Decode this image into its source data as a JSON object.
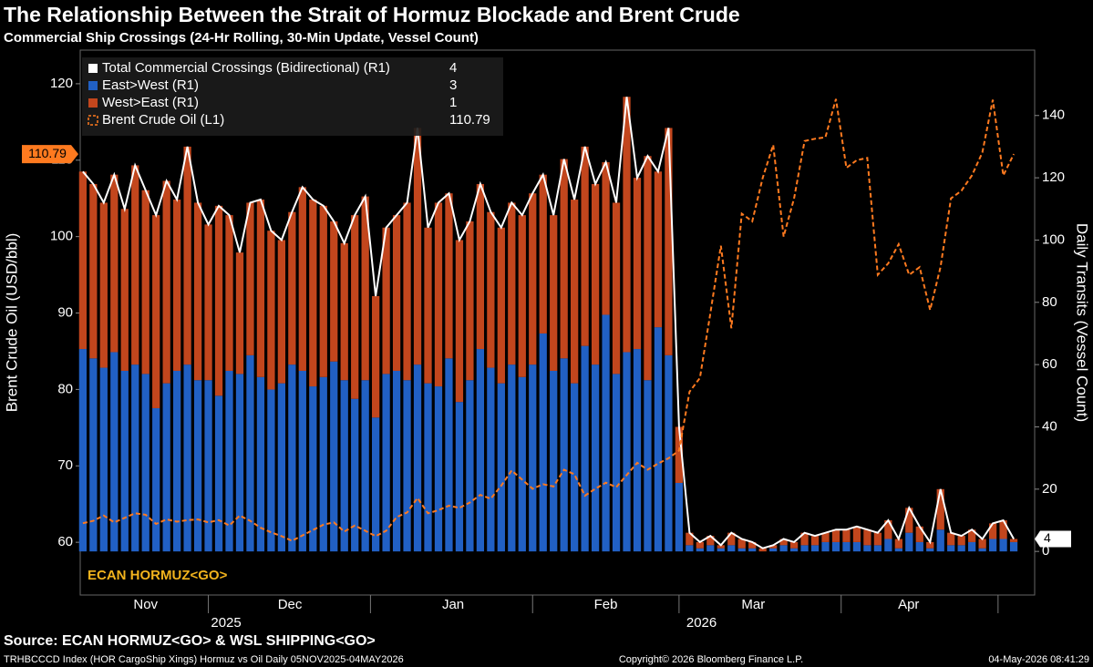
{
  "chart_data": {
    "type": "bar",
    "title": "The Relationship Between the Strait of Hormuz Blockade and Brent Crude",
    "subtitle": "Commercial Ship Crossings (24-Hr Rolling, 30-Min Update, Vessel Count)",
    "ylabel": "Brent Crude Oil (USD/bbl)",
    "y2label": "Daily Transits (Vessel Count)",
    "annotation": "ECAN HORMUZ<GO>",
    "source": "Source: ECAN HORMUZ<GO> & WSL SHIPPING<GO>",
    "footer_left": "TRHBCCCD Index (HOR CargoShip Xings) Hormuz vs Oil Daily 05NOV2025-04MAY2026",
    "footer_center": "Copyright© 2026 Bloomberg Finance L.P.",
    "footer_right": "04-May-2026 08:41:29",
    "x": [
      6,
      8,
      10,
      12,
      14,
      16,
      18,
      20,
      22,
      24,
      26,
      28,
      30,
      32,
      34,
      36,
      38,
      40,
      42,
      44,
      46,
      48,
      50,
      52,
      54,
      56,
      58,
      60,
      62,
      64,
      66,
      68,
      70,
      72,
      74,
      76,
      78,
      80,
      82,
      84,
      86,
      88,
      90,
      92,
      94,
      96,
      98,
      100,
      102,
      104,
      106,
      108,
      110,
      112,
      114,
      116,
      118,
      120,
      122,
      124,
      126,
      128,
      130,
      132,
      134,
      136,
      138,
      140,
      142,
      144,
      146,
      148,
      150,
      152,
      154,
      156,
      158,
      160,
      162,
      164,
      166,
      168,
      170,
      172,
      174,
      176,
      178,
      180,
      182,
      184
    ],
    "xlim": [
      5.5,
      188
    ],
    "xticks": [
      {
        "value": 18,
        "label": "Nov"
      },
      {
        "value": 45.6,
        "label": "Dec"
      },
      {
        "value": 76.8,
        "label": "Jan"
      },
      {
        "value": 106,
        "label": "Feb"
      },
      {
        "value": 134.2,
        "label": "Mar"
      },
      {
        "value": 163.9,
        "label": "Apr"
      }
    ],
    "year_ticks": [
      {
        "value": 33.4,
        "label": "2025"
      },
      {
        "value": 124.3,
        "label": "2026"
      }
    ],
    "x_separators": [
      30,
      61,
      92,
      120,
      151,
      181
    ],
    "ylim": [
      53.1,
      124.4
    ],
    "yticks": [
      60,
      70,
      80,
      90,
      100,
      110,
      120
    ],
    "y2lim": [
      -14,
      161
    ],
    "y2ticks": [
      0,
      20,
      40,
      60,
      80,
      100,
      120,
      140
    ],
    "series": [
      {
        "name": "Total Commercial Crossings (Bidirectional) (R1)",
        "type": "line",
        "axis": "y2",
        "color": "#ffffff",
        "values": [
          122,
          118,
          112,
          121,
          110,
          124,
          116,
          108,
          119,
          113,
          130,
          112,
          105,
          111,
          108,
          96,
          112,
          113,
          103,
          100,
          109,
          117,
          113,
          111,
          106,
          99,
          108,
          114,
          82,
          104,
          108,
          112,
          136,
          104,
          112,
          115,
          100,
          106,
          118,
          109,
          104,
          112,
          108,
          115,
          121,
          108,
          126,
          113,
          130,
          118,
          125,
          112,
          146,
          120,
          127,
          122,
          136,
          40,
          6,
          3,
          5,
          2,
          6,
          4,
          3,
          1,
          2,
          4,
          3,
          6,
          5,
          6,
          7,
          7,
          8,
          7,
          6,
          10,
          4,
          14,
          8,
          3,
          20,
          6,
          5,
          7,
          4,
          9,
          10,
          4
        ]
      },
      {
        "name": "East>West (R1)",
        "type": "bar",
        "axis": "y2",
        "color": "#2160c4",
        "values": [
          65,
          62,
          59,
          64,
          58,
          60,
          57,
          46,
          54,
          58,
          60,
          55,
          55,
          50,
          58,
          57,
          63,
          56,
          52,
          54,
          60,
          58,
          53,
          56,
          61,
          55,
          49,
          55,
          43,
          57,
          58,
          55,
          60,
          54,
          53,
          62,
          48,
          55,
          65,
          59,
          54,
          60,
          56,
          60,
          70,
          58,
          62,
          54,
          66,
          60,
          76,
          57,
          64,
          65,
          55,
          72,
          63,
          22,
          2,
          1,
          2,
          1,
          2,
          1,
          1,
          0,
          1,
          2,
          1,
          2,
          2,
          3,
          3,
          3,
          3,
          2,
          2,
          4,
          1,
          6,
          3,
          1,
          7,
          2,
          2,
          3,
          1,
          4,
          4,
          3
        ]
      },
      {
        "name": "West>East (R1)",
        "type": "bar",
        "axis": "y2",
        "color": "#c2461d",
        "values": [
          57,
          56,
          53,
          57,
          52,
          64,
          59,
          62,
          65,
          55,
          70,
          57,
          50,
          61,
          50,
          39,
          49,
          57,
          51,
          46,
          49,
          59,
          60,
          55,
          45,
          44,
          59,
          59,
          39,
          47,
          50,
          57,
          76,
          50,
          59,
          53,
          52,
          51,
          53,
          50,
          50,
          52,
          52,
          55,
          51,
          50,
          64,
          59,
          64,
          58,
          49,
          55,
          82,
          55,
          72,
          50,
          73,
          18,
          4,
          2,
          3,
          1,
          4,
          3,
          2,
          1,
          1,
          2,
          2,
          4,
          3,
          3,
          4,
          4,
          5,
          5,
          4,
          6,
          3,
          8,
          5,
          2,
          13,
          4,
          3,
          4,
          3,
          5,
          6,
          1
        ]
      },
      {
        "name": "Brent Crude Oil (L1)",
        "type": "line",
        "axis": "y",
        "color": "#ff7a1f",
        "dashed": true,
        "values": [
          62.5,
          62.8,
          63.5,
          62.6,
          63.2,
          63.8,
          63.6,
          62.4,
          63.0,
          62.7,
          62.9,
          63.0,
          62.6,
          62.9,
          62.2,
          63.5,
          62.8,
          61.9,
          61.3,
          60.8,
          60.2,
          60.9,
          61.6,
          62.3,
          62.6,
          61.4,
          62.2,
          61.5,
          60.8,
          61.5,
          63.3,
          63.9,
          65.8,
          63.8,
          64.2,
          64.8,
          64.5,
          65.2,
          66.2,
          65.7,
          67.4,
          69.4,
          68.2,
          67.0,
          67.6,
          67.3,
          69.5,
          68.9,
          66.1,
          67.0,
          67.8,
          67.2,
          68.8,
          70.4,
          69.5,
          70.3,
          71.0,
          72.0,
          79.7,
          81.5,
          90.0,
          98.8,
          88.0,
          103.0,
          102.0,
          107.7,
          112.0,
          100.0,
          105.0,
          112.5,
          112.8,
          113.0,
          118.0,
          109.0,
          110.0,
          110.3,
          95.0,
          96.5,
          99.0,
          95.0,
          96.0,
          90.4,
          96.0,
          105.0,
          106.0,
          108.0,
          111.0,
          117.9,
          108.0,
          110.79
        ]
      }
    ]
  }
}
